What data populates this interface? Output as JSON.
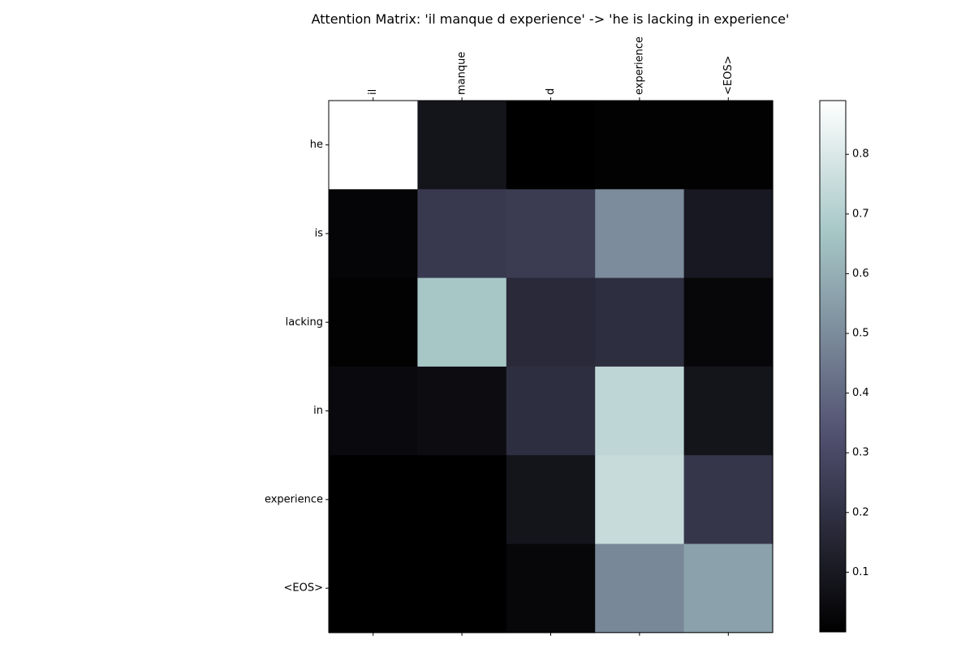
{
  "chart_data": {
    "type": "heatmap",
    "title": "Attention Matrix: 'il manque d experience' -> 'he is lacking in experience'",
    "x_labels": [
      "il",
      "manque",
      "d",
      "experience",
      "<EOS>"
    ],
    "y_labels": [
      "he",
      "is",
      "lacking",
      "in",
      "experience",
      "<EOS>"
    ],
    "values": [
      [
        0.89,
        0.08,
        0.0,
        0.01,
        0.01
      ],
      [
        0.02,
        0.23,
        0.24,
        0.5,
        0.1
      ],
      [
        0.01,
        0.67,
        0.17,
        0.19,
        0.03
      ],
      [
        0.04,
        0.05,
        0.19,
        0.73,
        0.08
      ],
      [
        0.0,
        0.0,
        0.08,
        0.75,
        0.22
      ],
      [
        0.0,
        0.0,
        0.03,
        0.49,
        0.56
      ]
    ],
    "colormap": "bone",
    "vmin": 0.0,
    "vmax": 0.89,
    "colorbar_ticks": [
      0.1,
      0.2,
      0.3,
      0.4,
      0.5,
      0.6,
      0.7,
      0.8
    ],
    "x_tick_position": "top",
    "grid": false
  }
}
